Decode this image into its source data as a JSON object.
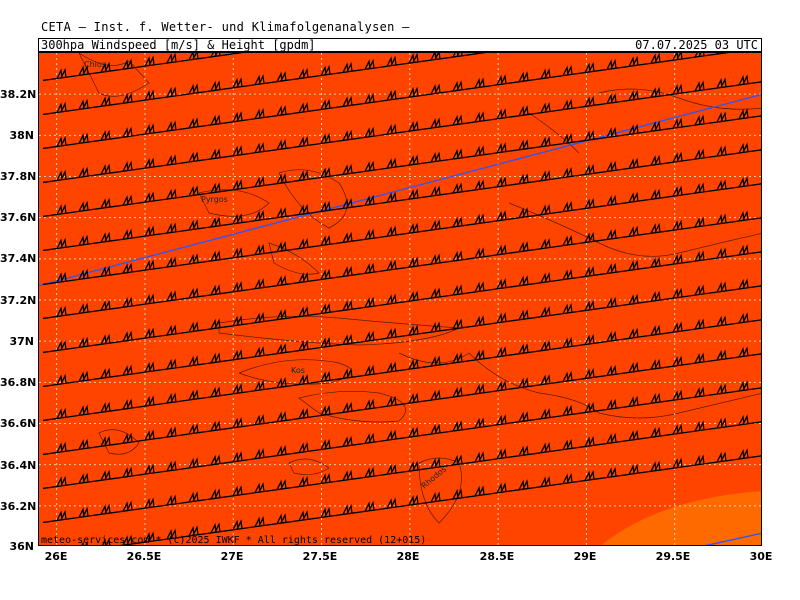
{
  "header": {
    "institute": "CETA — Inst. f. Wetter- und Klimafolgenanalysen —",
    "product": "300hpa_Windspeed_[m/s]_&_Height_[gpdm]",
    "datetime": "07.07.2025 03 UTC"
  },
  "footer": "meteo-services.com * (c)2025 IWKF * All rights reserved (12+015)",
  "lat_labels": [
    "38.2N",
    "38N",
    "37.8N",
    "37.6N",
    "37.4N",
    "37.2N",
    "37N",
    "36.8N",
    "36.6N",
    "36.4N",
    "36.2N",
    "36N"
  ],
  "lon_labels": [
    "26E",
    "26.5E",
    "27E",
    "27.5E",
    "28E",
    "28.5E",
    "29E",
    "29.5E",
    "30E"
  ],
  "places": {
    "chios": "Chios",
    "pyrgos": "Pyrgos",
    "kos": "Kos",
    "rhodos": "Rhodos"
  },
  "colors": {
    "field": "#ff4400",
    "field_high": "#ff6a00",
    "contour": "#3355ee"
  }
}
